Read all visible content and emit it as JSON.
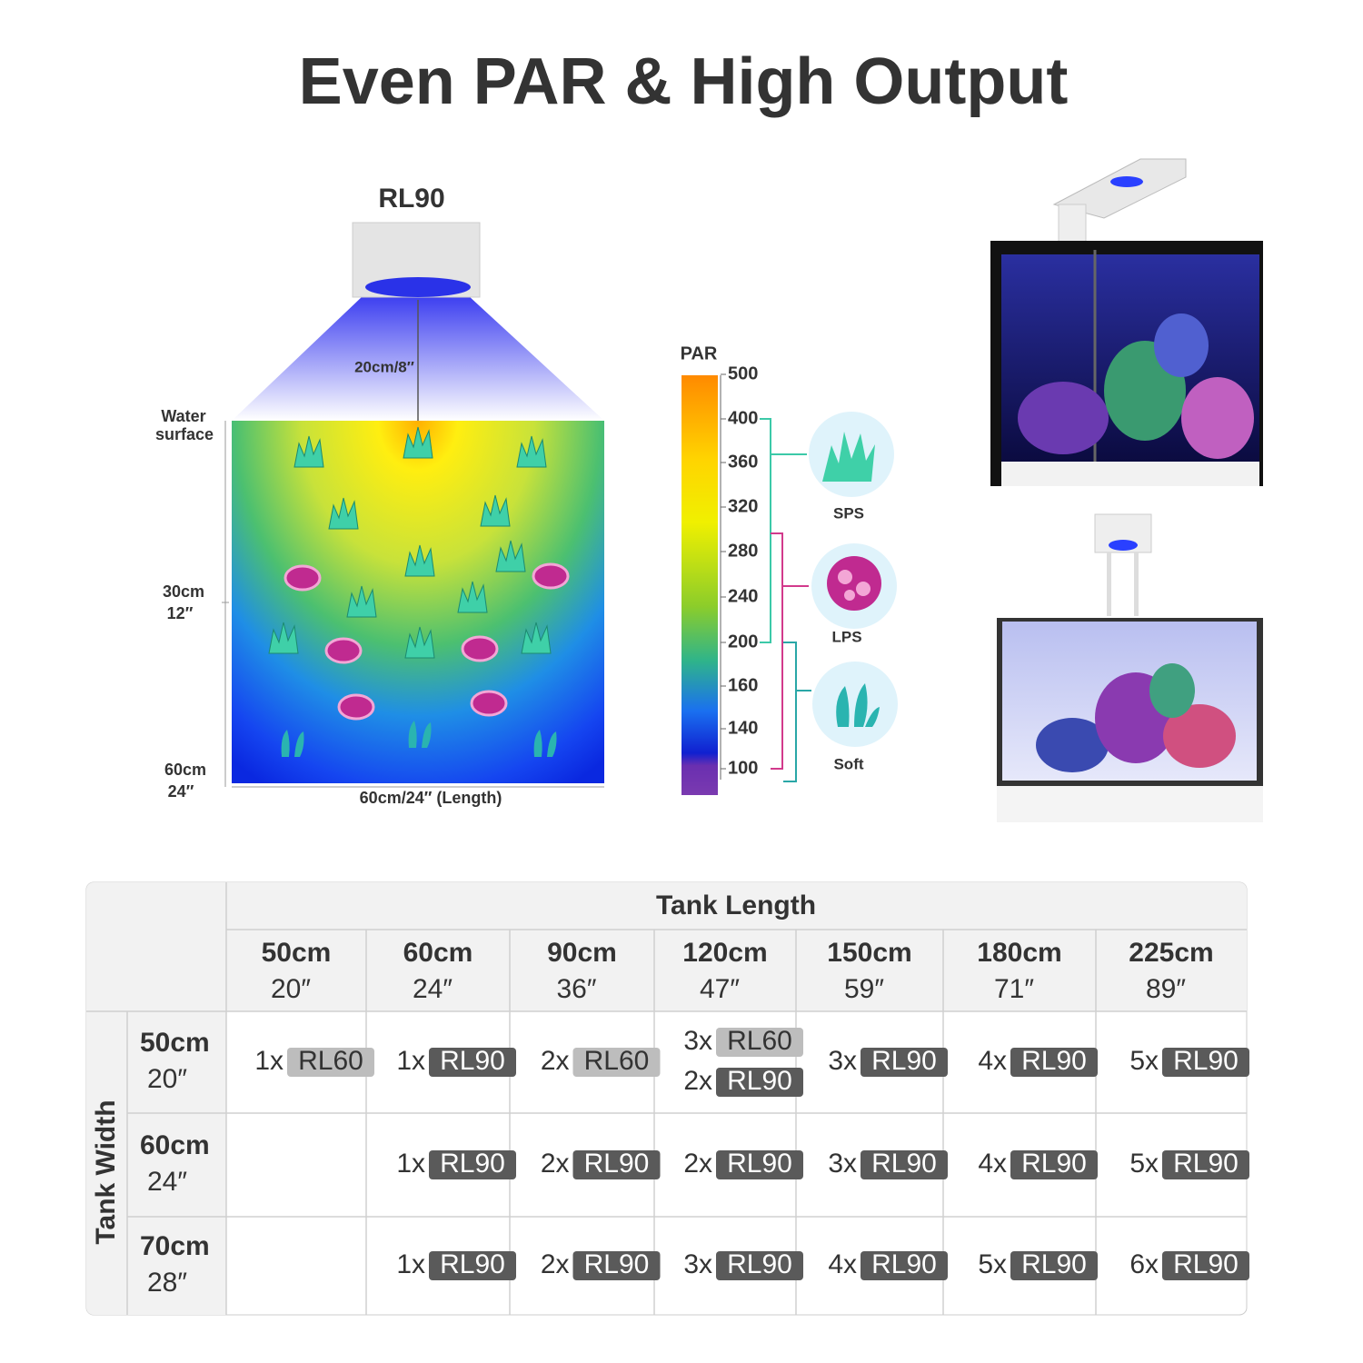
{
  "title": "Even PAR & High Output",
  "diagram": {
    "fixture": "RL90",
    "distance": "20cm/8″",
    "water_surface": [
      "Water",
      "surface"
    ],
    "depths": [
      {
        "cm": "30cm",
        "in": "12″"
      },
      {
        "cm": "60cm",
        "in": "24″"
      }
    ],
    "length": "60cm/24″  (Length)"
  },
  "par_scale": {
    "title": "PAR",
    "ticks": [
      500,
      400,
      360,
      320,
      280,
      240,
      200,
      160,
      140,
      100
    ]
  },
  "corals": [
    "SPS",
    "LPS",
    "Soft"
  ],
  "table": {
    "column_header": "Tank Length",
    "row_header": "Tank Width",
    "columns": [
      {
        "cm": "50cm",
        "in": "20″"
      },
      {
        "cm": "60cm",
        "in": "24″"
      },
      {
        "cm": "90cm",
        "in": "36″"
      },
      {
        "cm": "120cm",
        "in": "47″"
      },
      {
        "cm": "150cm",
        "in": "59″"
      },
      {
        "cm": "180cm",
        "in": "71″"
      },
      {
        "cm": "225cm",
        "in": "89″"
      }
    ],
    "rows": [
      {
        "cm": "50cm",
        "in": "20″",
        "cells": [
          [
            {
              "count": "1x",
              "model": "RL60",
              "color": "#bdbdbd"
            }
          ],
          [
            {
              "count": "1x",
              "model": "RL90",
              "color": "#5a5a5a"
            }
          ],
          [
            {
              "count": "2x",
              "model": "RL60",
              "color": "#bdbdbd"
            }
          ],
          [
            {
              "count": "3x",
              "model": "RL60",
              "color": "#bdbdbd"
            },
            {
              "count": "2x",
              "model": "RL90",
              "color": "#5a5a5a"
            }
          ],
          [
            {
              "count": "3x",
              "model": "RL90",
              "color": "#5a5a5a"
            }
          ],
          [
            {
              "count": "4x",
              "model": "RL90",
              "color": "#5a5a5a"
            }
          ],
          [
            {
              "count": "5x",
              "model": "RL90",
              "color": "#5a5a5a"
            }
          ]
        ]
      },
      {
        "cm": "60cm",
        "in": "24″",
        "cells": [
          [],
          [
            {
              "count": "1x",
              "model": "RL90",
              "color": "#5a5a5a"
            }
          ],
          [
            {
              "count": "2x",
              "model": "RL90",
              "color": "#5a5a5a"
            }
          ],
          [
            {
              "count": "2x",
              "model": "RL90",
              "color": "#5a5a5a"
            }
          ],
          [
            {
              "count": "3x",
              "model": "RL90",
              "color": "#5a5a5a"
            }
          ],
          [
            {
              "count": "4x",
              "model": "RL90",
              "color": "#5a5a5a"
            }
          ],
          [
            {
              "count": "5x",
              "model": "RL90",
              "color": "#5a5a5a"
            }
          ]
        ]
      },
      {
        "cm": "70cm",
        "in": "28″",
        "cells": [
          [],
          [
            {
              "count": "1x",
              "model": "RL90",
              "color": "#5a5a5a"
            }
          ],
          [
            {
              "count": "2x",
              "model": "RL90",
              "color": "#5a5a5a"
            }
          ],
          [
            {
              "count": "3x",
              "model": "RL90",
              "color": "#5a5a5a"
            }
          ],
          [
            {
              "count": "4x",
              "model": "RL90",
              "color": "#5a5a5a"
            }
          ],
          [
            {
              "count": "5x",
              "model": "RL90",
              "color": "#5a5a5a"
            }
          ],
          [
            {
              "count": "6x",
              "model": "RL90",
              "color": "#5a5a5a"
            }
          ]
        ]
      }
    ]
  }
}
